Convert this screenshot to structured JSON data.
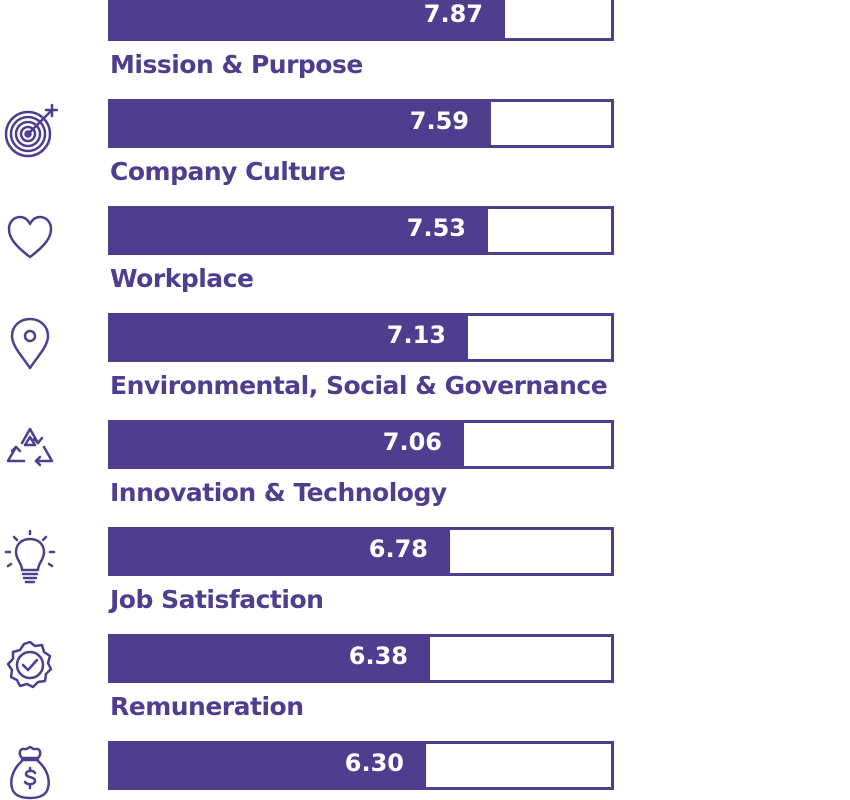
{
  "chart_data": {
    "type": "bar",
    "orientation": "horizontal",
    "categories": [
      "",
      "Mission & Purpose",
      "Company Culture",
      "Workplace",
      "Environmental, Social & Governance",
      "Innovation & Technology",
      "Job Satisfaction",
      "Remuneration"
    ],
    "values": [
      7.87,
      7.59,
      7.53,
      7.13,
      7.06,
      6.78,
      6.38,
      6.3
    ],
    "value_labels": [
      "7.87",
      "7.59",
      "7.53",
      "7.13",
      "7.06",
      "6.78",
      "6.38",
      "6.30"
    ],
    "xlim": [
      0,
      10
    ],
    "grid": false,
    "title": "",
    "xlabel": "",
    "ylabel": ""
  },
  "icons": [
    "",
    "target-icon",
    "heart-icon",
    "location-pin-icon",
    "recycle-icon",
    "lightbulb-icon",
    "badge-check-icon",
    "money-bag-icon"
  ],
  "colors": {
    "bar": "#4f3e90",
    "track_border": "#4f3e90",
    "label": "#4f3e90",
    "value_text": "#ffffff"
  }
}
